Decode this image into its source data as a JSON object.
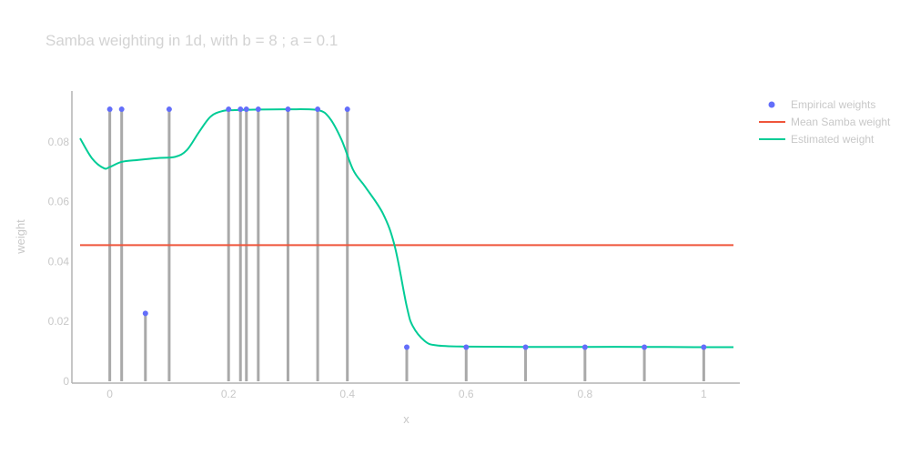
{
  "chart_data": {
    "type": "scatter",
    "title": "Samba weighting in 1d, with b = 8 ; a = 0.1",
    "xlabel": "x",
    "ylabel": "weight",
    "xlim": [
      -0.05,
      1.05
    ],
    "ylim": [
      0,
      0.097
    ],
    "xticks": [
      0,
      0.2,
      0.4,
      0.6,
      0.8,
      1
    ],
    "xtick_labels": [
      "0",
      "0.2",
      "0.4",
      "0.6",
      "0.8",
      "1"
    ],
    "yticks": [
      0,
      0.02,
      0.04,
      0.06,
      0.08
    ],
    "ytick_labels": [
      "0",
      "0.02",
      "0.04",
      "0.06",
      "0.08"
    ],
    "grid": false,
    "legend_position": "top-right",
    "series": [
      {
        "name": "Empirical weights",
        "kind": "markers+stems",
        "color": "#636efa",
        "stem_color": "#a9a9a9",
        "x": [
          0,
          0.02,
          0.06,
          0.1,
          0.2,
          0.22,
          0.23,
          0.25,
          0.3,
          0.35,
          0.4,
          0.5,
          0.6,
          0.7,
          0.8,
          0.9,
          1
        ],
        "y": [
          0.0909,
          0.0909,
          0.0227,
          0.0909,
          0.0909,
          0.0909,
          0.0909,
          0.0909,
          0.0909,
          0.0909,
          0.0909,
          0.0114,
          0.0114,
          0.0114,
          0.0114,
          0.0114,
          0.0114
        ]
      },
      {
        "name": "Mean Samba weight",
        "kind": "line",
        "color": "#ef553b",
        "x": [
          -0.05,
          1.05
        ],
        "y": [
          0.0455,
          0.0455
        ]
      },
      {
        "name": "Estimated weight",
        "kind": "line",
        "color": "#00cc96",
        "x": [
          -0.05,
          -0.03,
          -0.01,
          0.0,
          0.02,
          0.05,
          0.08,
          0.11,
          0.13,
          0.15,
          0.17,
          0.19,
          0.21,
          0.25,
          0.3,
          0.35,
          0.37,
          0.39,
          0.41,
          0.43,
          0.46,
          0.48,
          0.5,
          0.51,
          0.53,
          0.55,
          0.6,
          0.7,
          0.8,
          0.9,
          1.0,
          1.05
        ],
        "y": [
          0.0812,
          0.0745,
          0.0712,
          0.0716,
          0.0733,
          0.074,
          0.0746,
          0.075,
          0.0773,
          0.0832,
          0.0885,
          0.0903,
          0.0906,
          0.0908,
          0.0909,
          0.0906,
          0.088,
          0.0808,
          0.0705,
          0.065,
          0.056,
          0.045,
          0.025,
          0.0185,
          0.0135,
          0.012,
          0.0116,
          0.0115,
          0.0115,
          0.0115,
          0.0114,
          0.0114
        ]
      }
    ]
  }
}
